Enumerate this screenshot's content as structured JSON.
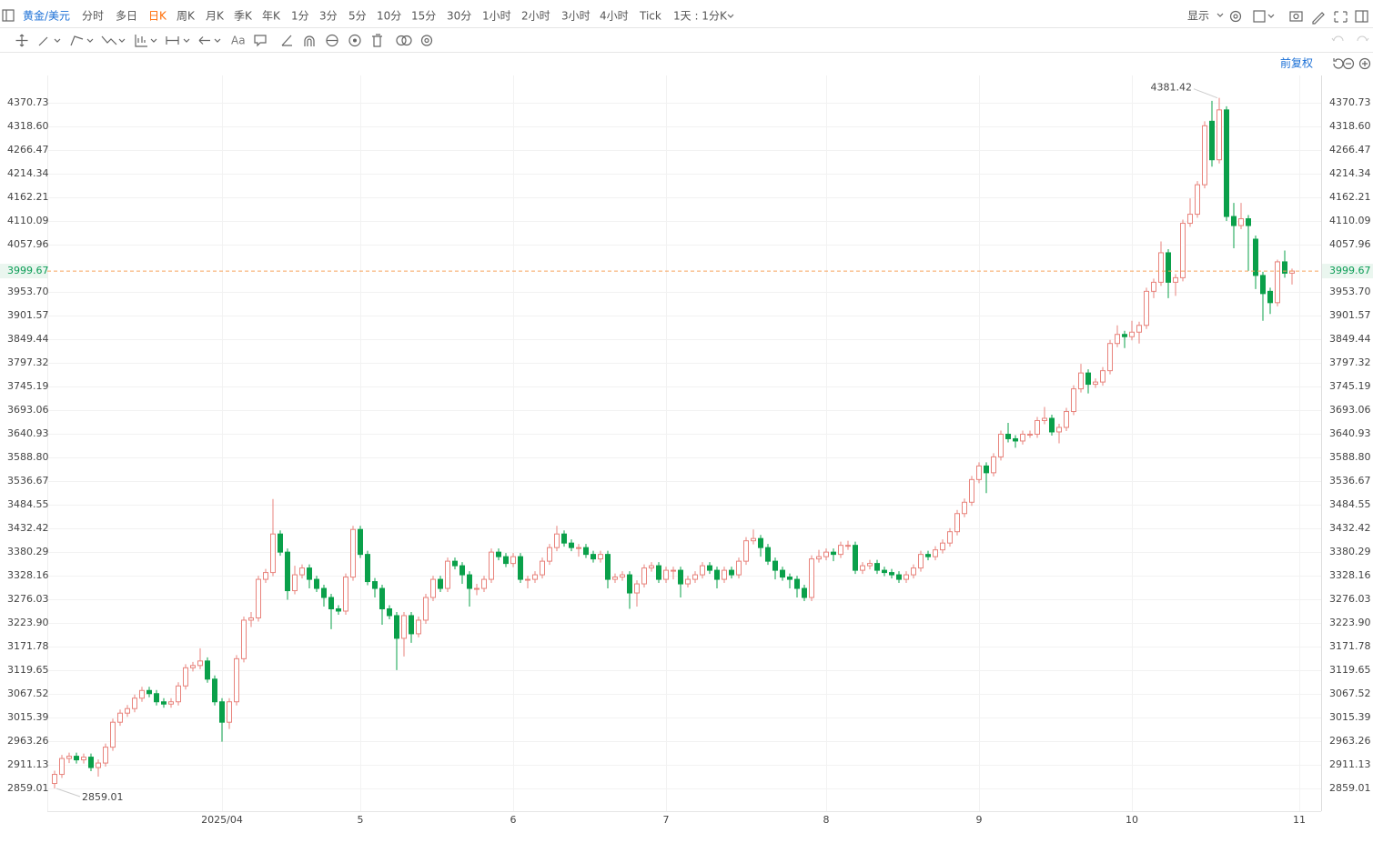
{
  "toolbar": {
    "symbol": "黄金/美元",
    "periods": [
      "分时",
      "多日",
      "日K",
      "周K",
      "月K",
      "季K",
      "年K",
      "1分",
      "3分",
      "5分",
      "10分",
      "15分",
      "30分",
      "1小时",
      "2小时",
      "3小时",
      "4小时",
      "Tick"
    ],
    "active_period_index": 2,
    "range_selector": "1天 : 1分K",
    "display_button": "显示",
    "adjust_mode": "前复权"
  },
  "chart_data": {
    "type": "candlestick",
    "up_color": "#e8837c",
    "down_color": "#0aa04a",
    "last_price_color": "#f6a35e",
    "grid": true,
    "xlim": [
      -1,
      174
    ],
    "ylim": [
      2808.88,
      4430.88
    ],
    "xticks": [
      {
        "value": 23,
        "label": "2025/04"
      },
      {
        "value": 42,
        "label": "5"
      },
      {
        "value": 63,
        "label": "6"
      },
      {
        "value": 84,
        "label": "7"
      },
      {
        "value": 106,
        "label": "8"
      },
      {
        "value": 127,
        "label": "9"
      },
      {
        "value": 148,
        "label": "10"
      },
      {
        "value": 171,
        "label": "11"
      }
    ],
    "yticks": [
      4370.73,
      {
        "value": 4318.6,
        "label": "4318.60"
      },
      4266.47,
      4214.34,
      4162.21,
      4110.09,
      4057.96,
      {
        "value": 3953.7,
        "label": "3953.70"
      },
      3901.57,
      3849.44,
      3797.32,
      3745.19,
      3693.06,
      3640.93,
      {
        "value": 3588.8,
        "label": "3588.80"
      },
      3536.67,
      3484.55,
      3432.42,
      3380.29,
      3328.16,
      3276.03,
      {
        "value": 3223.9,
        "label": "3223.90"
      },
      3171.78,
      3119.65,
      3067.52,
      3015.39,
      2963.26,
      2911.13,
      2859.01
    ],
    "ohlc": [
      [
        2870,
        2898,
        2859.01,
        2890
      ],
      [
        2890,
        2933,
        2882,
        2925
      ],
      [
        2925,
        2938,
        2915,
        2930
      ],
      [
        2930,
        2938,
        2914,
        2922
      ],
      [
        2922,
        2936,
        2914,
        2928
      ],
      [
        2928,
        2936,
        2897,
        2905
      ],
      [
        2905,
        2923,
        2885,
        2915
      ],
      [
        2915,
        2958,
        2907,
        2950
      ],
      [
        2950,
        3013,
        2942,
        3005
      ],
      [
        3005,
        3033,
        2997,
        3025
      ],
      [
        3025,
        3043,
        3017,
        3035
      ],
      [
        3035,
        3066,
        3027,
        3058
      ],
      [
        3058,
        3083,
        3050,
        3075
      ],
      [
        3075,
        3083,
        3060,
        3068
      ],
      [
        3068,
        3076,
        3042,
        3050
      ],
      [
        3050,
        3058,
        3037,
        3045
      ],
      [
        3045,
        3058,
        3037,
        3050
      ],
      [
        3050,
        3093,
        3042,
        3085
      ],
      [
        3085,
        3133,
        3077,
        3125
      ],
      [
        3125,
        3138,
        3117,
        3130
      ],
      [
        3130,
        3168,
        3122,
        3140
      ],
      [
        3140,
        3148,
        3092,
        3100
      ],
      [
        3100,
        3108,
        3042,
        3050
      ],
      [
        3050,
        3058,
        2962,
        3005
      ],
      [
        3005,
        3058,
        2990,
        3050
      ],
      [
        3050,
        3153,
        3042,
        3145
      ],
      [
        3145,
        3238,
        3137,
        3230
      ],
      [
        3230,
        3248,
        3215,
        3235
      ],
      [
        3235,
        3328,
        3227,
        3320
      ],
      [
        3320,
        3343,
        3312,
        3335
      ],
      [
        3335,
        3497,
        3327,
        3420
      ],
      [
        3420,
        3428,
        3372,
        3380
      ],
      [
        3380,
        3388,
        3275,
        3295
      ],
      [
        3295,
        3350,
        3287,
        3330
      ],
      [
        3330,
        3353,
        3322,
        3345
      ],
      [
        3345,
        3353,
        3300,
        3320
      ],
      [
        3320,
        3328,
        3292,
        3300
      ],
      [
        3300,
        3308,
        3260,
        3280
      ],
      [
        3280,
        3288,
        3210,
        3255
      ],
      [
        3255,
        3263,
        3242,
        3250
      ],
      [
        3250,
        3333,
        3242,
        3325
      ],
      [
        3325,
        3438,
        3317,
        3430
      ],
      [
        3430,
        3438,
        3367,
        3375
      ],
      [
        3375,
        3383,
        3307,
        3315
      ],
      [
        3315,
        3323,
        3280,
        3300
      ],
      [
        3300,
        3308,
        3220,
        3255
      ],
      [
        3255,
        3263,
        3232,
        3240
      ],
      [
        3240,
        3248,
        3120,
        3190
      ],
      [
        3190,
        3248,
        3150,
        3240
      ],
      [
        3240,
        3248,
        3180,
        3200
      ],
      [
        3200,
        3238,
        3192,
        3230
      ],
      [
        3230,
        3288,
        3222,
        3280
      ],
      [
        3280,
        3328,
        3272,
        3320
      ],
      [
        3320,
        3328,
        3292,
        3300
      ],
      [
        3300,
        3368,
        3292,
        3360
      ],
      [
        3360,
        3368,
        3342,
        3350
      ],
      [
        3350,
        3358,
        3310,
        3330
      ],
      [
        3330,
        3338,
        3260,
        3300
      ],
      [
        3300,
        3310,
        3285,
        3300
      ],
      [
        3300,
        3328,
        3292,
        3320
      ],
      [
        3320,
        3388,
        3312,
        3380
      ],
      [
        3380,
        3388,
        3362,
        3370
      ],
      [
        3370,
        3378,
        3347,
        3355
      ],
      [
        3355,
        3378,
        3347,
        3370
      ],
      [
        3370,
        3378,
        3312,
        3320
      ],
      [
        3320,
        3328,
        3300,
        3320
      ],
      [
        3320,
        3338,
        3312,
        3330
      ],
      [
        3330,
        3368,
        3322,
        3360
      ],
      [
        3360,
        3398,
        3352,
        3390
      ],
      [
        3390,
        3438,
        3382,
        3420
      ],
      [
        3420,
        3428,
        3392,
        3400
      ],
      [
        3400,
        3408,
        3382,
        3390
      ],
      [
        3390,
        3398,
        3370,
        3390
      ],
      [
        3390,
        3398,
        3367,
        3375
      ],
      [
        3375,
        3383,
        3357,
        3365
      ],
      [
        3365,
        3383,
        3357,
        3375
      ],
      [
        3375,
        3383,
        3300,
        3320
      ],
      [
        3320,
        3333,
        3312,
        3325
      ],
      [
        3325,
        3338,
        3317,
        3330
      ],
      [
        3330,
        3338,
        3255,
        3290
      ],
      [
        3290,
        3318,
        3260,
        3310
      ],
      [
        3310,
        3353,
        3302,
        3345
      ],
      [
        3345,
        3358,
        3337,
        3350
      ],
      [
        3350,
        3358,
        3312,
        3320
      ],
      [
        3320,
        3348,
        3312,
        3340
      ],
      [
        3340,
        3348,
        3320,
        3340
      ],
      [
        3340,
        3348,
        3280,
        3310
      ],
      [
        3310,
        3328,
        3302,
        3320
      ],
      [
        3320,
        3338,
        3312,
        3330
      ],
      [
        3330,
        3358,
        3322,
        3350
      ],
      [
        3350,
        3358,
        3332,
        3340
      ],
      [
        3340,
        3348,
        3300,
        3320
      ],
      [
        3320,
        3348,
        3312,
        3340
      ],
      [
        3340,
        3348,
        3322,
        3330
      ],
      [
        3330,
        3368,
        3322,
        3360
      ],
      [
        3360,
        3413,
        3352,
        3405
      ],
      [
        3405,
        3430,
        3397,
        3410
      ],
      [
        3410,
        3418,
        3370,
        3390
      ],
      [
        3390,
        3398,
        3352,
        3360
      ],
      [
        3360,
        3368,
        3320,
        3340
      ],
      [
        3340,
        3348,
        3317,
        3325
      ],
      [
        3325,
        3333,
        3300,
        3320
      ],
      [
        3320,
        3328,
        3280,
        3300
      ],
      [
        3300,
        3308,
        3272,
        3280
      ],
      [
        3280,
        3373,
        3272,
        3365
      ],
      [
        3365,
        3385,
        3357,
        3370
      ],
      [
        3370,
        3388,
        3362,
        3380
      ],
      [
        3380,
        3388,
        3360,
        3375
      ],
      [
        3375,
        3403,
        3367,
        3395
      ],
      [
        3395,
        3405,
        3385,
        3395
      ],
      [
        3395,
        3403,
        3332,
        3340
      ],
      [
        3340,
        3358,
        3332,
        3350
      ],
      [
        3350,
        3363,
        3342,
        3355
      ],
      [
        3355,
        3363,
        3332,
        3340
      ],
      [
        3340,
        3348,
        3327,
        3335
      ],
      [
        3335,
        3343,
        3322,
        3330
      ],
      [
        3330,
        3338,
        3312,
        3320
      ],
      [
        3320,
        3338,
        3312,
        3330
      ],
      [
        3330,
        3353,
        3322,
        3345
      ],
      [
        3345,
        3383,
        3337,
        3375
      ],
      [
        3375,
        3383,
        3362,
        3370
      ],
      [
        3370,
        3393,
        3362,
        3385
      ],
      [
        3385,
        3408,
        3377,
        3400
      ],
      [
        3400,
        3433,
        3392,
        3425
      ],
      [
        3425,
        3473,
        3417,
        3465
      ],
      [
        3465,
        3498,
        3457,
        3490
      ],
      [
        3490,
        3548,
        3482,
        3540
      ],
      [
        3540,
        3578,
        3532,
        3570
      ],
      [
        3570,
        3578,
        3510,
        3555
      ],
      [
        3555,
        3598,
        3547,
        3590
      ],
      [
        3590,
        3648,
        3582,
        3640
      ],
      [
        3640,
        3665,
        3622,
        3630
      ],
      [
        3630,
        3638,
        3610,
        3625
      ],
      [
        3625,
        3648,
        3617,
        3640
      ],
      [
        3640,
        3648,
        3632,
        3640
      ],
      [
        3640,
        3678,
        3632,
        3670
      ],
      [
        3670,
        3700,
        3662,
        3675
      ],
      [
        3675,
        3683,
        3637,
        3645
      ],
      [
        3645,
        3663,
        3620,
        3655
      ],
      [
        3655,
        3698,
        3647,
        3690
      ],
      [
        3690,
        3748,
        3682,
        3740
      ],
      [
        3740,
        3795,
        3732,
        3775
      ],
      [
        3775,
        3783,
        3730,
        3750
      ],
      [
        3750,
        3763,
        3742,
        3755
      ],
      [
        3755,
        3788,
        3747,
        3780
      ],
      [
        3780,
        3848,
        3772,
        3840
      ],
      [
        3840,
        3880,
        3832,
        3860
      ],
      [
        3860,
        3868,
        3830,
        3855
      ],
      [
        3855,
        3890,
        3847,
        3865
      ],
      [
        3865,
        3888,
        3840,
        3880
      ],
      [
        3880,
        3963,
        3872,
        3955
      ],
      [
        3955,
        3983,
        3940,
        3975
      ],
      [
        3975,
        4065,
        3967,
        4040
      ],
      [
        4040,
        4048,
        3940,
        3975
      ],
      [
        3975,
        3993,
        3945,
        3985
      ],
      [
        3985,
        4113,
        3977,
        4105
      ],
      [
        4105,
        4160,
        4097,
        4125
      ],
      [
        4125,
        4198,
        4117,
        4190
      ],
      [
        4190,
        4330,
        4182,
        4320
      ],
      [
        4330,
        4375,
        4230,
        4245
      ],
      [
        4245,
        4381.42,
        4237,
        4355
      ],
      [
        4355,
        4363,
        4110,
        4120
      ],
      [
        4120,
        4150,
        4050,
        4100
      ],
      [
        4100,
        4150,
        4092,
        4115
      ],
      [
        4115,
        4123,
        4000,
        4100
      ],
      [
        4070,
        4078,
        3960,
        3990
      ],
      [
        3990,
        3998,
        3890,
        3950
      ],
      [
        3955,
        3963,
        3905,
        3930
      ],
      [
        3930,
        4025,
        3922,
        4020
      ],
      [
        4020,
        4045,
        3985,
        3995
      ],
      [
        3995,
        4005,
        3970,
        3999.67
      ]
    ]
  }
}
